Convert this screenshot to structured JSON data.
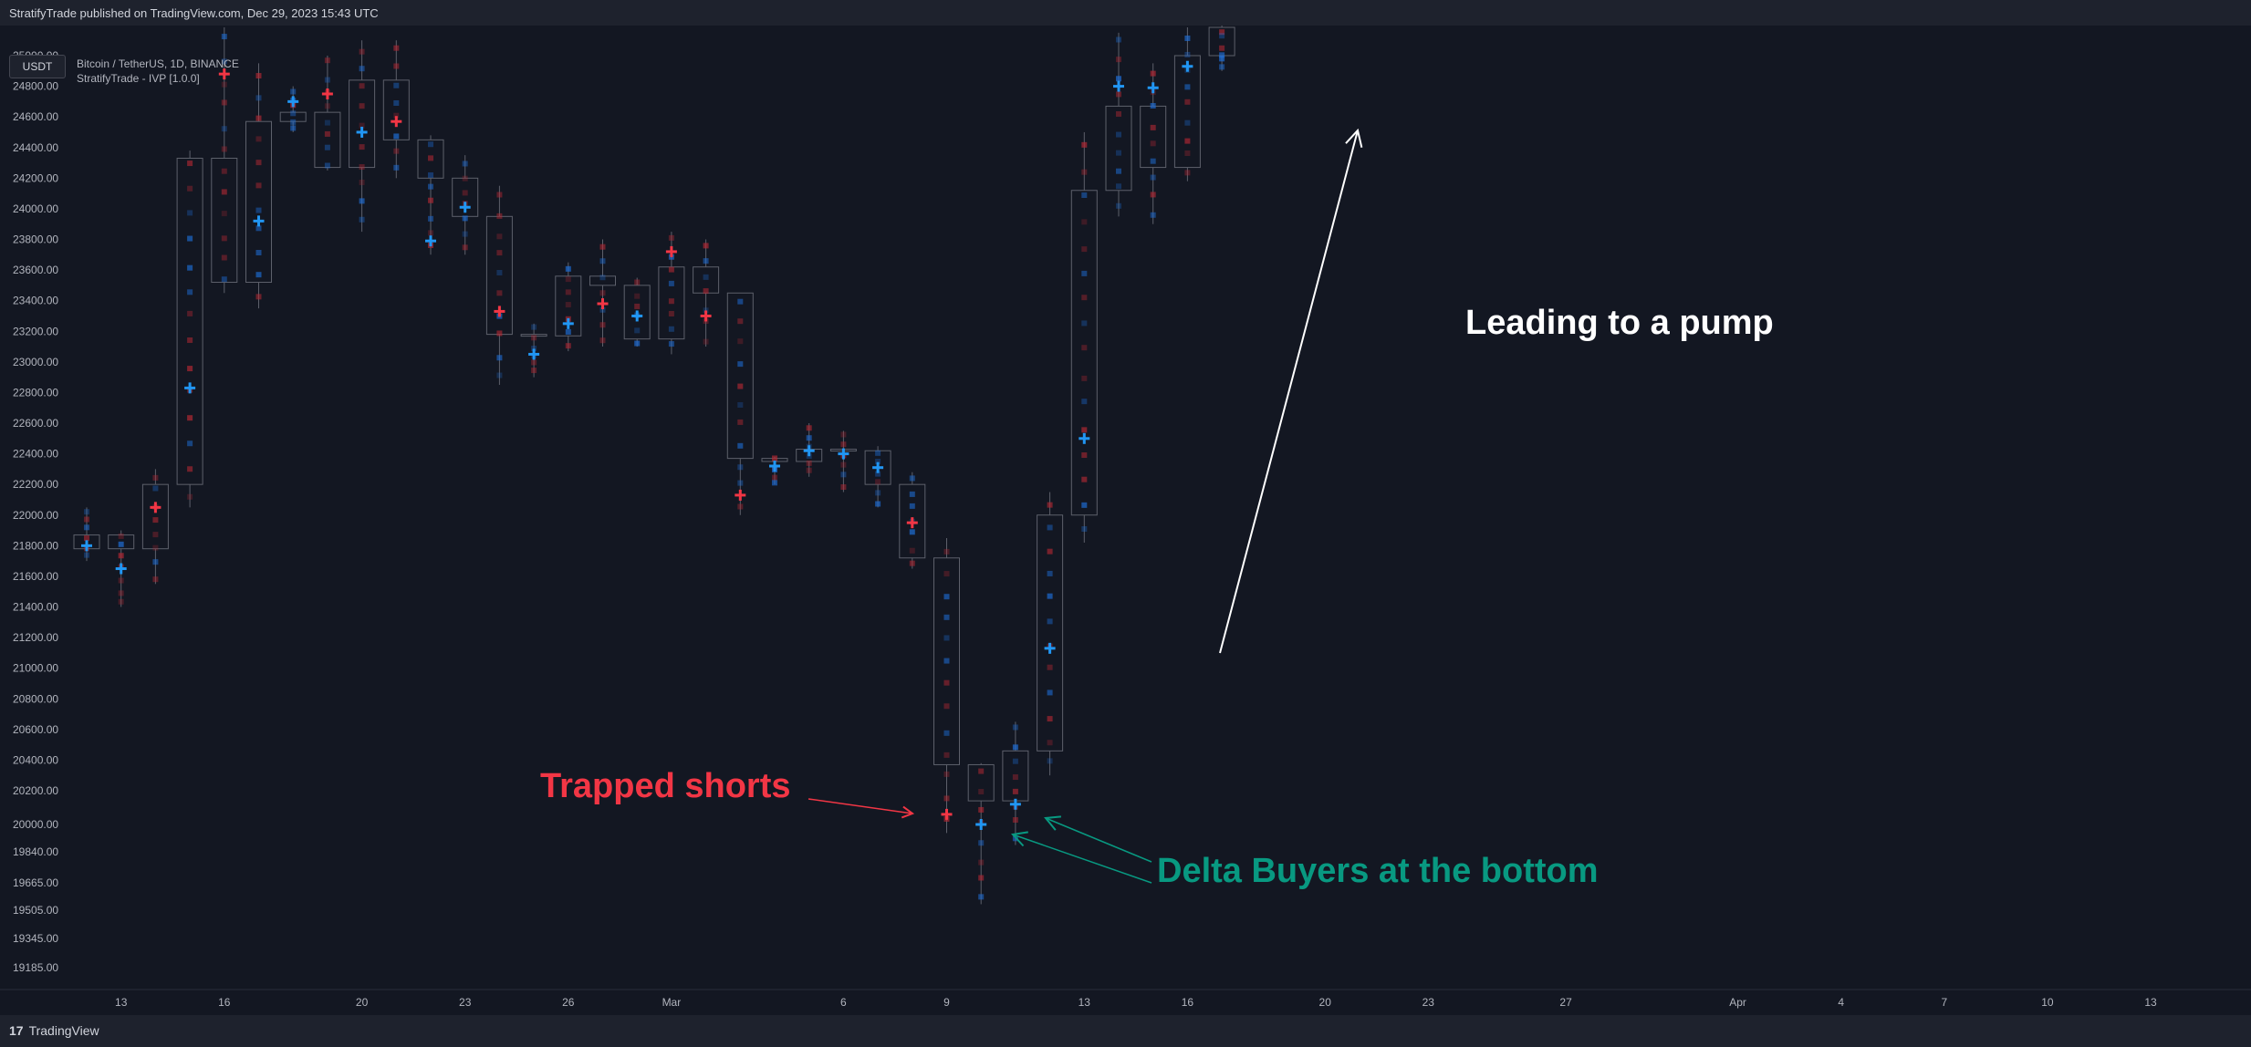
{
  "header": {
    "published": "StratifyTrade published on TradingView.com, Dec 29, 2023 15:43 UTC"
  },
  "currency_button": "USDT",
  "legend": {
    "symbol": "Bitcoin / TetherUS, 1D, BINANCE",
    "indicator": "StratifyTrade - IVP [1.0.0]"
  },
  "footer": {
    "brand": "TradingView"
  },
  "annotations": {
    "trapped": "Trapped shorts",
    "delta": "Delta Buyers at the bottom",
    "pump": "Leading to a pump"
  },
  "colors": {
    "bull": "#2962ff",
    "bear": "#f23645",
    "teal": "#089981",
    "candle_outline": "#5d606b",
    "white": "#ffffff"
  },
  "chart_data": {
    "type": "candlestick",
    "ylim": [
      19100,
      25050
    ],
    "y_ticks": [
      "25000.00",
      "24800.00",
      "24600.00",
      "24400.00",
      "24200.00",
      "24000.00",
      "23800.00",
      "23600.00",
      "23400.00",
      "23200.00",
      "23000.00",
      "22800.00",
      "22600.00",
      "22400.00",
      "22200.00",
      "22000.00",
      "21800.00",
      "21600.00",
      "21400.00",
      "21200.00",
      "21000.00",
      "20800.00",
      "20600.00",
      "20400.00",
      "20200.00",
      "20000.00",
      "19840.00",
      "19665.00",
      "19505.00",
      "19345.00",
      "19185.00"
    ],
    "x_ticks": [
      {
        "label": "13",
        "day": 1
      },
      {
        "label": "16",
        "day": 4
      },
      {
        "label": "20",
        "day": 8
      },
      {
        "label": "23",
        "day": 11
      },
      {
        "label": "26",
        "day": 14
      },
      {
        "label": "Mar",
        "day": 17
      },
      {
        "label": "6",
        "day": 22
      },
      {
        "label": "9",
        "day": 25
      },
      {
        "label": "13",
        "day": 29
      },
      {
        "label": "16",
        "day": 32
      },
      {
        "label": "20",
        "day": 36
      },
      {
        "label": "23",
        "day": 39
      },
      {
        "label": "27",
        "day": 43
      },
      {
        "label": "Apr",
        "day": 48
      },
      {
        "label": "4",
        "day": 51
      },
      {
        "label": "7",
        "day": 54
      },
      {
        "label": "10",
        "day": 57
      },
      {
        "label": "13",
        "day": 60
      }
    ],
    "candles": [
      {
        "o": 21780,
        "h": 22050,
        "l": 21700,
        "c": 21870,
        "poc": 21800,
        "pd": "bull"
      },
      {
        "o": 21870,
        "h": 21900,
        "l": 21400,
        "c": 21780,
        "poc": 21650,
        "pd": "bull"
      },
      {
        "o": 21780,
        "h": 22300,
        "l": 21550,
        "c": 22200,
        "poc": 22050,
        "pd": "bear"
      },
      {
        "o": 22200,
        "h": 24380,
        "l": 22050,
        "c": 24330,
        "poc": 22830,
        "pd": "bull"
      },
      {
        "o": 24330,
        "h": 25200,
        "l": 23450,
        "c": 23520,
        "poc": 24880,
        "pd": "bear"
      },
      {
        "o": 23520,
        "h": 24950,
        "l": 23350,
        "c": 24570,
        "poc": 23920,
        "pd": "bull"
      },
      {
        "o": 24570,
        "h": 24800,
        "l": 24500,
        "c": 24630,
        "poc": 24700,
        "pd": "bull"
      },
      {
        "o": 24630,
        "h": 25000,
        "l": 24250,
        "c": 24270,
        "poc": 24750,
        "pd": "bear"
      },
      {
        "o": 24270,
        "h": 25100,
        "l": 23850,
        "c": 24840,
        "poc": 24500,
        "pd": "bull"
      },
      {
        "o": 24840,
        "h": 25100,
        "l": 24200,
        "c": 24450,
        "poc": 24570,
        "pd": "bear"
      },
      {
        "o": 24450,
        "h": 24480,
        "l": 23700,
        "c": 24200,
        "poc": 23790,
        "pd": "bull"
      },
      {
        "o": 24200,
        "h": 24350,
        "l": 23700,
        "c": 23950,
        "poc": 24010,
        "pd": "bull"
      },
      {
        "o": 23950,
        "h": 24150,
        "l": 22850,
        "c": 23180,
        "poc": 23330,
        "pd": "bear"
      },
      {
        "o": 23180,
        "h": 23250,
        "l": 22900,
        "c": 23170,
        "poc": 23050,
        "pd": "bull"
      },
      {
        "o": 23170,
        "h": 23650,
        "l": 23070,
        "c": 23560,
        "poc": 23250,
        "pd": "bull"
      },
      {
        "o": 23560,
        "h": 23800,
        "l": 23100,
        "c": 23500,
        "poc": 23380,
        "pd": "bear"
      },
      {
        "o": 23500,
        "h": 23550,
        "l": 23100,
        "c": 23150,
        "poc": 23300,
        "pd": "bull"
      },
      {
        "o": 23150,
        "h": 23850,
        "l": 23050,
        "c": 23620,
        "poc": 23720,
        "pd": "bear"
      },
      {
        "o": 23620,
        "h": 23800,
        "l": 23100,
        "c": 23450,
        "poc": 23300,
        "pd": "bear"
      },
      {
        "o": 23450,
        "h": 23450,
        "l": 22000,
        "c": 22370,
        "poc": 22130,
        "pd": "bear"
      },
      {
        "o": 22370,
        "h": 22380,
        "l": 22200,
        "c": 22350,
        "poc": 22320,
        "pd": "bull"
      },
      {
        "o": 22350,
        "h": 22600,
        "l": 22250,
        "c": 22430,
        "poc": 22420,
        "pd": "bull"
      },
      {
        "o": 22430,
        "h": 22550,
        "l": 22150,
        "c": 22420,
        "poc": 22400,
        "pd": "bull"
      },
      {
        "o": 22420,
        "h": 22450,
        "l": 22050,
        "c": 22200,
        "poc": 22310,
        "pd": "bull"
      },
      {
        "o": 22200,
        "h": 22280,
        "l": 21650,
        "c": 21720,
        "poc": 21950,
        "pd": "bear"
      },
      {
        "o": 21720,
        "h": 21850,
        "l": 19950,
        "c": 20370,
        "poc": 20060,
        "pd": "bear"
      },
      {
        "o": 20370,
        "h": 20380,
        "l": 19540,
        "c": 20140,
        "poc": 20000,
        "pd": "bull"
      },
      {
        "o": 20140,
        "h": 20650,
        "l": 19880,
        "c": 20460,
        "poc": 20120,
        "pd": "bull"
      },
      {
        "o": 20460,
        "h": 22150,
        "l": 20300,
        "c": 22000,
        "poc": 21130,
        "pd": "bull"
      },
      {
        "o": 22000,
        "h": 24500,
        "l": 21820,
        "c": 24120,
        "poc": 22500,
        "pd": "bull"
      },
      {
        "o": 24120,
        "h": 25150,
        "l": 23950,
        "c": 24670,
        "poc": 24800,
        "pd": "bull"
      },
      {
        "o": 24670,
        "h": 24950,
        "l": 23900,
        "c": 24270,
        "poc": 24790,
        "pd": "bull"
      },
      {
        "o": 24270,
        "h": 25300,
        "l": 24180,
        "c": 25000,
        "poc": 24930,
        "pd": "bull"
      },
      {
        "o": 25000,
        "h": 25500,
        "l": 24900,
        "c": 25400,
        "poc": null,
        "pd": "bull"
      }
    ]
  }
}
